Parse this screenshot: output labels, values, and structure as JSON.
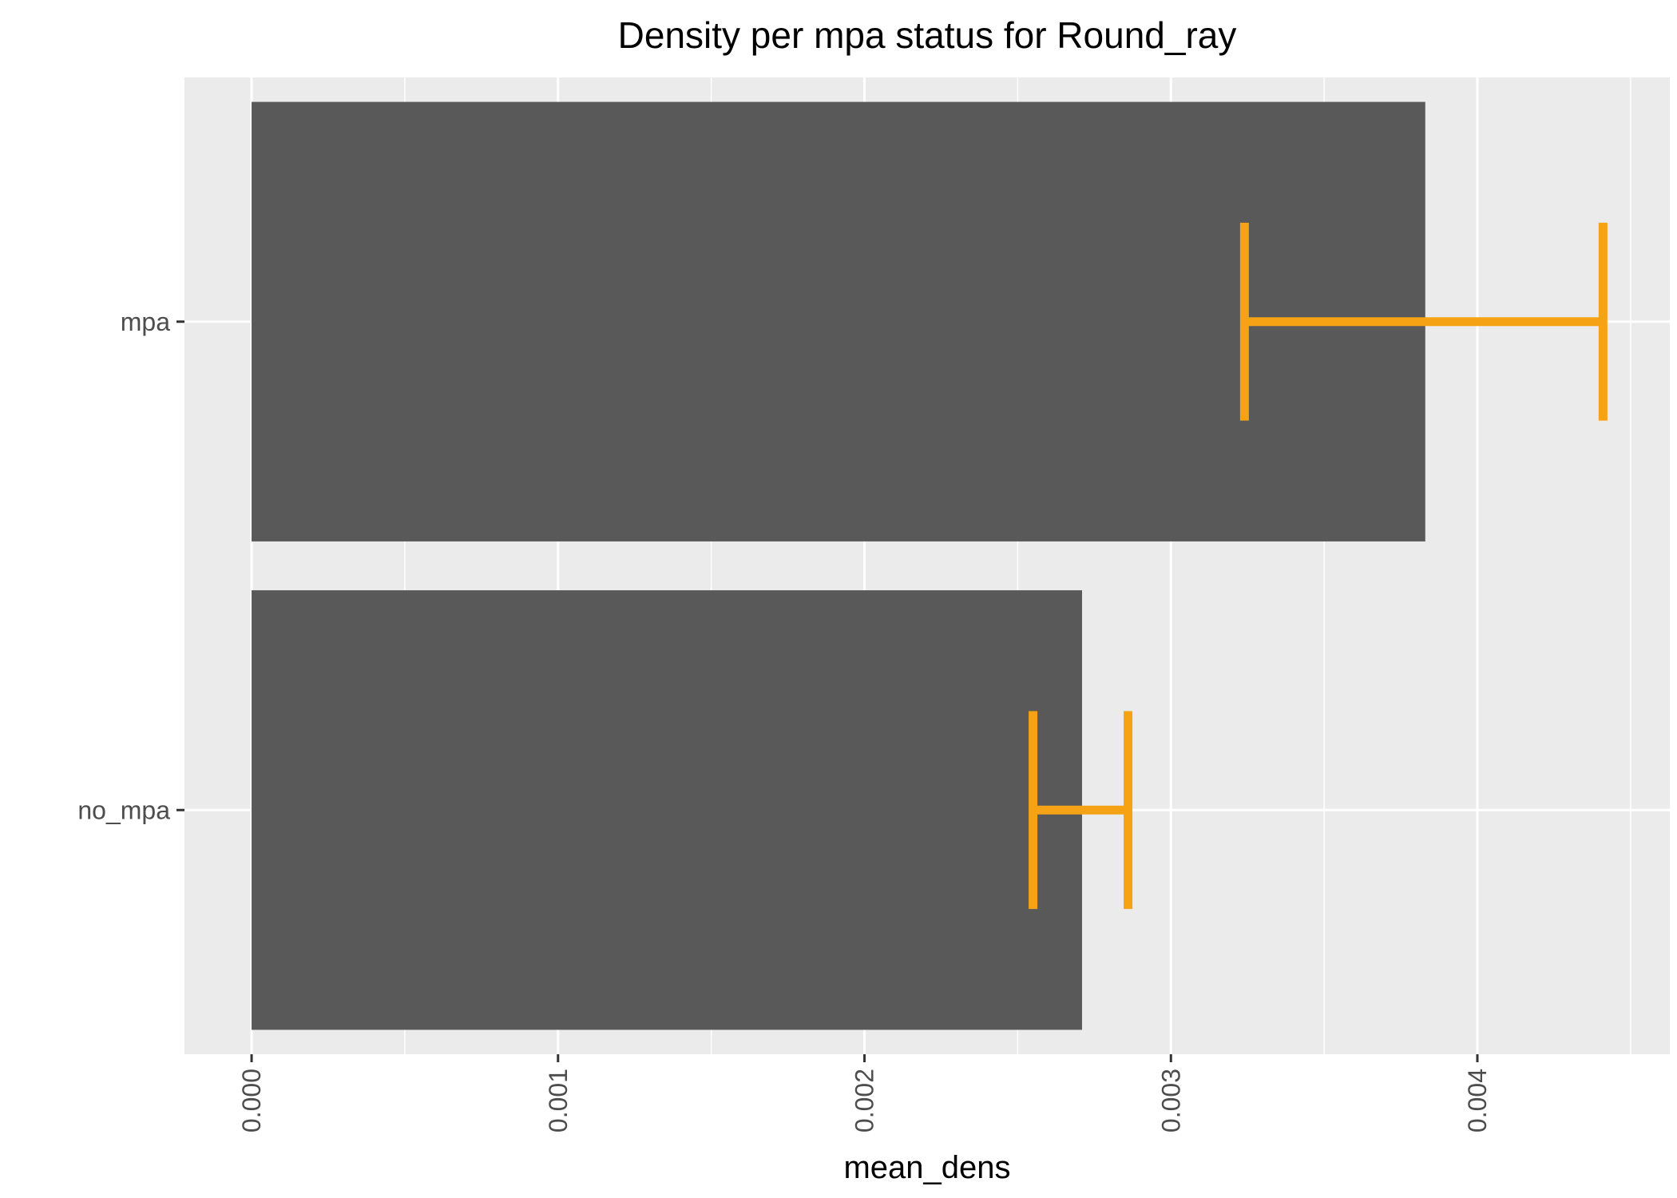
{
  "chart_data": {
    "type": "bar",
    "orientation": "horizontal",
    "title": "Density per mpa status for Round_ray",
    "xlabel": "mean_dens",
    "ylabel": "",
    "categories": [
      "mpa",
      "no_mpa"
    ],
    "values": [
      0.00383,
      0.00271
    ],
    "error_bars": [
      {
        "category": "mpa",
        "low": 0.00324,
        "high": 0.00441
      },
      {
        "category": "no_mpa",
        "low": 0.00255,
        "high": 0.00286
      }
    ],
    "xlim": [
      -0.000219,
      0.004628
    ],
    "x_ticks": [
      {
        "value": 0.0,
        "label": "0.000"
      },
      {
        "value": 0.001,
        "label": "0.001"
      },
      {
        "value": 0.002,
        "label": "0.002"
      },
      {
        "value": 0.003,
        "label": "0.003"
      },
      {
        "value": 0.004,
        "label": "0.004"
      }
    ],
    "x_minor_ticks": [
      0.0005,
      0.0015,
      0.0025,
      0.0035,
      0.0045
    ],
    "grid": true,
    "legend": "none",
    "colors": {
      "panel_bg": "#ebebeb",
      "grid": "#ffffff",
      "bar_fill": "#595959",
      "error_bar": "#f5a314",
      "tick_mark": "#333333"
    }
  }
}
